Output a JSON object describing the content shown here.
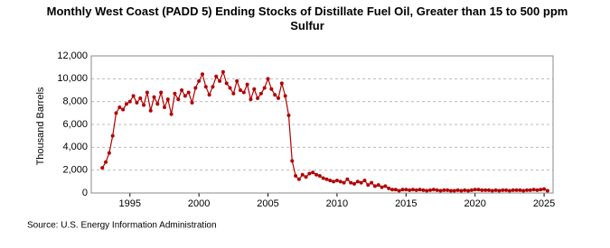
{
  "chart_data": {
    "type": "line",
    "title": "Monthly West Coast (PADD 5) Ending Stocks of Distillate Fuel Oil, Greater than 15 to 500 ppm Sulfur",
    "y_label": "Thousand Barrels",
    "source": "Source: U.S. Energy Information Administration",
    "x": [
      1993,
      1993.25,
      1993.5,
      1993.75,
      1994,
      1994.25,
      1994.5,
      1994.75,
      1995,
      1995.25,
      1995.5,
      1995.75,
      1996,
      1996.25,
      1996.5,
      1996.75,
      1997,
      1997.25,
      1997.5,
      1997.75,
      1998,
      1998.25,
      1998.5,
      1998.75,
      1999,
      1999.25,
      1999.5,
      1999.75,
      2000,
      2000.25,
      2000.5,
      2000.75,
      2001,
      2001.25,
      2001.5,
      2001.75,
      2002,
      2002.25,
      2002.5,
      2002.75,
      2003,
      2003.25,
      2003.5,
      2003.75,
      2004,
      2004.25,
      2004.5,
      2004.75,
      2005,
      2005.25,
      2005.5,
      2005.75,
      2006,
      2006.25,
      2006.5,
      2006.75,
      2007,
      2007.25,
      2007.5,
      2007.75,
      2008,
      2008.25,
      2008.5,
      2008.75,
      2009,
      2009.25,
      2009.5,
      2009.75,
      2010,
      2010.25,
      2010.5,
      2010.75,
      2011,
      2011.25,
      2011.5,
      2011.75,
      2012,
      2012.25,
      2012.5,
      2012.75,
      2013,
      2013.25,
      2013.5,
      2013.75,
      2014,
      2014.25,
      2014.5,
      2014.75,
      2015,
      2015.25,
      2015.5,
      2015.75,
      2016,
      2016.25,
      2016.5,
      2016.75,
      2017,
      2017.25,
      2017.5,
      2017.75,
      2018,
      2018.25,
      2018.5,
      2018.75,
      2019,
      2019.25,
      2019.5,
      2019.75,
      2020,
      2020.25,
      2020.5,
      2020.75,
      2021,
      2021.25,
      2021.5,
      2021.75,
      2022,
      2022.25,
      2022.5,
      2022.75,
      2023,
      2023.25,
      2023.5,
      2023.75,
      2024,
      2024.25,
      2024.5,
      2024.75,
      2025,
      2025.25
    ],
    "series": [
      {
        "name": "Ending Stocks",
        "color": "#b30000",
        "values": [
          2200,
          2700,
          3500,
          5000,
          7000,
          7500,
          7300,
          7800,
          8000,
          8500,
          7900,
          8300,
          7700,
          8800,
          7200,
          8400,
          7800,
          8800,
          7500,
          8200,
          6900,
          8700,
          8200,
          9000,
          8500,
          8800,
          7900,
          9200,
          9800,
          10400,
          9300,
          8600,
          9300,
          10200,
          9800,
          10600,
          9600,
          9200,
          8700,
          9800,
          9000,
          8800,
          9500,
          8200,
          9100,
          8300,
          8700,
          9200,
          10000,
          9100,
          8600,
          8300,
          9600,
          8500,
          6800,
          2800,
          1500,
          1200,
          1600,
          1400,
          1700,
          1800,
          1600,
          1500,
          1300,
          1200,
          1100,
          1000,
          1100,
          1000,
          900,
          1200,
          900,
          800,
          1000,
          900,
          1100,
          700,
          900,
          600,
          700,
          500,
          600,
          400,
          300,
          300,
          200,
          300,
          300,
          250,
          300,
          250,
          300,
          250,
          200,
          250,
          300,
          250,
          200,
          250,
          250,
          200,
          200,
          250,
          200,
          250,
          200,
          250,
          300,
          300,
          250,
          250,
          250,
          200,
          250,
          200,
          250,
          250,
          200,
          250,
          250,
          250,
          200,
          250,
          250,
          300,
          250,
          300,
          350,
          200
        ]
      }
    ],
    "xlim": [
      1992.2,
      2025.65
    ],
    "xticks": [
      1995,
      2000,
      2005,
      2010,
      2015,
      2020,
      2025
    ],
    "ylim": [
      0,
      12000
    ],
    "yticks": [
      0,
      {
        "value": 2000,
        "label": "2,000"
      },
      {
        "value": 4000,
        "label": "4,000"
      },
      {
        "value": 6000,
        "label": "6,000"
      },
      {
        "value": 8000,
        "label": "8,000"
      },
      {
        "value": 10000,
        "label": "10,000"
      },
      {
        "value": 12000,
        "label": "12,000"
      }
    ],
    "grid": true
  }
}
